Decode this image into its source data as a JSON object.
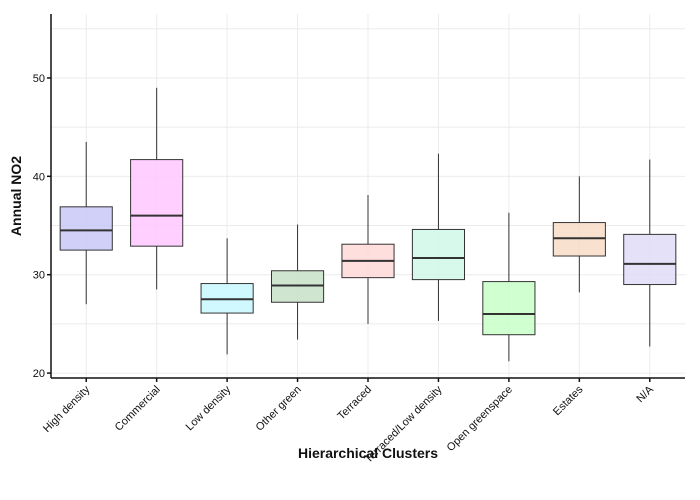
{
  "chart_data": {
    "type": "boxplot",
    "title": "",
    "xlabel": "Hierarchical Clusters",
    "ylabel": "Annual NO2",
    "ylim": [
      19.5,
      56.5
    ],
    "yticks": [
      20,
      30,
      40,
      50
    ],
    "grid": true,
    "categories": [
      "High density",
      "Commercial",
      "Low density",
      "Other green",
      "Terraced",
      "Terraced/Low density",
      "Open greenspace",
      "Estates",
      "N/A"
    ],
    "boxes": [
      {
        "category": "High density",
        "min": 27.0,
        "q1": 32.5,
        "median": 34.5,
        "q3": 36.9,
        "max": 43.5,
        "color": "#c8c8f8"
      },
      {
        "category": "Commercial",
        "min": 28.5,
        "q1": 32.9,
        "median": 36.0,
        "q3": 41.7,
        "max": 49.0,
        "color": "#ffc8ff"
      },
      {
        "category": "Low density",
        "min": 21.9,
        "q1": 26.1,
        "median": 27.5,
        "q3": 29.1,
        "max": 33.7,
        "color": "#c8f8ff"
      },
      {
        "category": "Other green",
        "min": 23.4,
        "q1": 27.2,
        "median": 28.9,
        "q3": 30.4,
        "max": 35.1,
        "color": "#c8e0c8"
      },
      {
        "category": "Terraced",
        "min": 25.0,
        "q1": 29.7,
        "median": 31.4,
        "q3": 33.1,
        "max": 38.1,
        "color": "#ffd8d8"
      },
      {
        "category": "Terraced/Low density",
        "min": 25.3,
        "q1": 29.5,
        "median": 31.7,
        "q3": 34.6,
        "max": 42.3,
        "color": "#d0f8e8"
      },
      {
        "category": "Open greenspace",
        "min": 21.2,
        "q1": 23.9,
        "median": 26.0,
        "q3": 29.3,
        "max": 36.3,
        "color": "#c8ffc8"
      },
      {
        "category": "Estates",
        "min": 28.2,
        "q1": 31.9,
        "median": 33.7,
        "q3": 35.3,
        "max": 40.0,
        "color": "#f8dcc8"
      },
      {
        "category": "N/A",
        "min": 22.7,
        "q1": 29.0,
        "median": 31.1,
        "q3": 34.1,
        "max": 41.7,
        "color": "#e0dcf8"
      }
    ]
  }
}
